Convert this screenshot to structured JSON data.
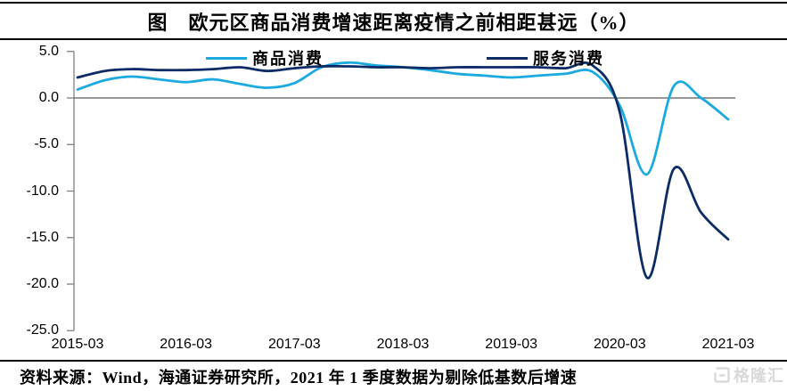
{
  "title": "图　欧元区商品消费增速距离疫情之前相距甚远（%）",
  "legend": [
    {
      "label": "商品消费",
      "color": "#1CA9E0"
    },
    {
      "label": "服务消费",
      "color": "#0D2B64"
    }
  ],
  "footer": {
    "source_text": "资料来源：Wind，海通证券研究所，2021 年 1 季度数据为剔除低基数后增速"
  },
  "watermark": {
    "icon": "gelonghui-logo",
    "text": "格隆汇",
    "color": "#d9d9d9"
  },
  "chart_data": {
    "type": "line",
    "title": "图　欧元区商品消费增速距离疫情之前相距甚远（%）",
    "x": [
      "2015-03",
      "2015-06",
      "2015-09",
      "2015-12",
      "2016-03",
      "2016-06",
      "2016-09",
      "2016-12",
      "2017-03",
      "2017-06",
      "2017-09",
      "2017-12",
      "2018-03",
      "2018-06",
      "2018-09",
      "2018-12",
      "2019-03",
      "2019-06",
      "2019-09",
      "2019-12",
      "2020-03",
      "2020-06",
      "2020-09",
      "2020-12",
      "2021-03"
    ],
    "series": [
      {
        "name": "商品消费",
        "color": "#1CA9E0",
        "values": [
          0.9,
          1.9,
          2.3,
          2.0,
          1.7,
          2.0,
          1.5,
          1.1,
          1.6,
          3.3,
          3.8,
          3.5,
          3.3,
          3.0,
          2.6,
          2.4,
          2.2,
          2.4,
          2.6,
          2.8,
          -0.8,
          -8.2,
          1.3,
          0.0,
          -2.3
        ]
      },
      {
        "name": "服务消费",
        "color": "#0D2B64",
        "values": [
          2.2,
          2.9,
          3.1,
          3.0,
          3.0,
          3.1,
          3.3,
          2.9,
          3.2,
          3.4,
          3.4,
          3.3,
          3.3,
          3.2,
          3.3,
          3.3,
          3.3,
          3.3,
          3.2,
          3.5,
          -1.5,
          -19.3,
          -7.6,
          -12.3,
          -15.2
        ]
      }
    ],
    "ylim": [
      -25.0,
      5.0
    ],
    "yticks": [
      5.0,
      0.0,
      -5.0,
      -10.0,
      -15.0,
      -20.0,
      -25.0
    ],
    "ytick_labels": [
      "5.0",
      "0.0",
      "-5.0",
      "-10.0",
      "-15.0",
      "-20.0",
      "-25.0"
    ],
    "xtick_labels": [
      "2015-03",
      "2016-03",
      "2017-03",
      "2018-03",
      "2019-03",
      "2020-03",
      "2021-03"
    ],
    "xlabel": "",
    "ylabel": "",
    "grid": "zero-line-only",
    "legend_position": "top-inside",
    "axis_color": "#808080",
    "zero_line_color": "#595959"
  }
}
